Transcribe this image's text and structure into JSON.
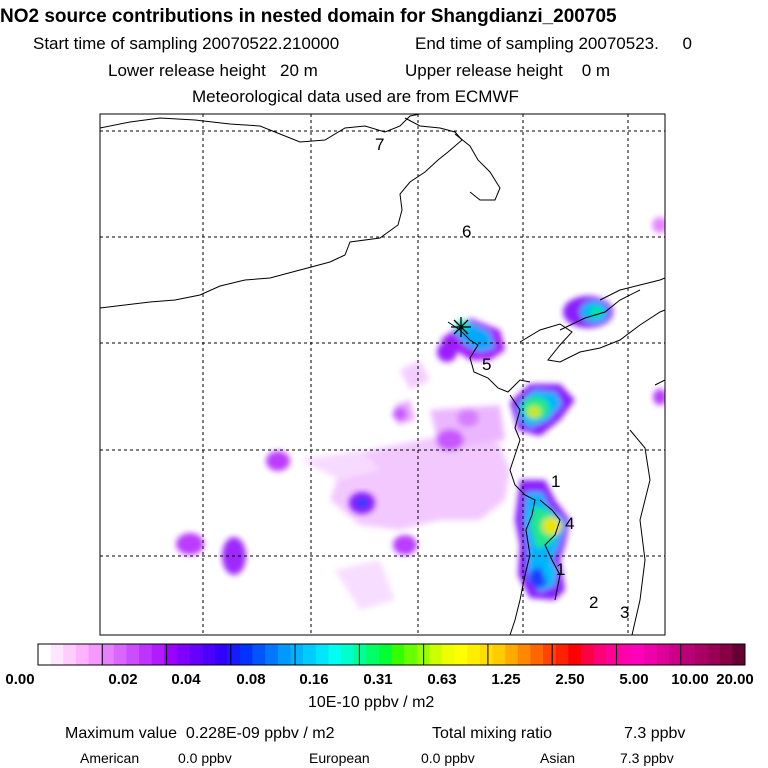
{
  "header": {
    "title": "NO2 source contributions in nested domain for Shangdianzi_200705",
    "start_sampling": "Start time of sampling 20070522.210000",
    "end_sampling": "End time of sampling 20070523.     0",
    "lower_release": "Lower release height   20 m",
    "upper_release": "Upper release height    0 m",
    "met_data": "Meteorological data used are from ECMWF"
  },
  "map": {
    "region_labels": [
      "7",
      "6",
      "5",
      "1",
      "4",
      "1",
      "2",
      "3"
    ],
    "station_marker": "receptor-star"
  },
  "legend": {
    "tick_labels": [
      "0.00",
      "0.02",
      "0.04",
      "0.08",
      "0.16",
      "0.31",
      "0.63",
      "1.25",
      "2.50",
      "5.00",
      "10.00",
      "20.00"
    ],
    "colors": [
      "#ffffff",
      "#ffe6ff",
      "#ffccff",
      "#ffb3ff",
      "#f599ff",
      "#e680ff",
      "#d966ff",
      "#cc4dff",
      "#bf33ff",
      "#b21aff",
      "#9900ff",
      "#8000ff",
      "#6600ff",
      "#4d00ff",
      "#3300ff",
      "#1a1aff",
      "#0033ff",
      "#0055ff",
      "#0077ff",
      "#0099ff",
      "#00b3ff",
      "#00ccff",
      "#00e6ff",
      "#00ffee",
      "#00ffcc",
      "#00ff99",
      "#00ff66",
      "#00ff33",
      "#33ff00",
      "#66ff00",
      "#99ff00",
      "#ccff00",
      "#eeff00",
      "#ffff00",
      "#ffee00",
      "#ffdd00",
      "#ffcc00",
      "#ffaa00",
      "#ff8800",
      "#ff6600",
      "#ff4400",
      "#ff2200",
      "#ff0000",
      "#ff0044",
      "#ff0077",
      "#ff0099",
      "#ff00aa",
      "#ff00bb",
      "#ee00aa",
      "#dd0099",
      "#cc0088",
      "#bb0077",
      "#aa0066",
      "#990055",
      "#880044",
      "#660033"
    ],
    "unit": "10E-10 ppbv / m2"
  },
  "summary": {
    "max_value": "Maximum value  0.228E-09 ppbv / m2",
    "total_label": "Total mixing ratio",
    "total_value": "7.3 ppbv",
    "american_label": "American",
    "american_value": "0.0 ppbv",
    "european_label": "European",
    "european_value": "0.0 ppbv",
    "asian_label": "Asian",
    "asian_value": "7.3 ppbv"
  }
}
